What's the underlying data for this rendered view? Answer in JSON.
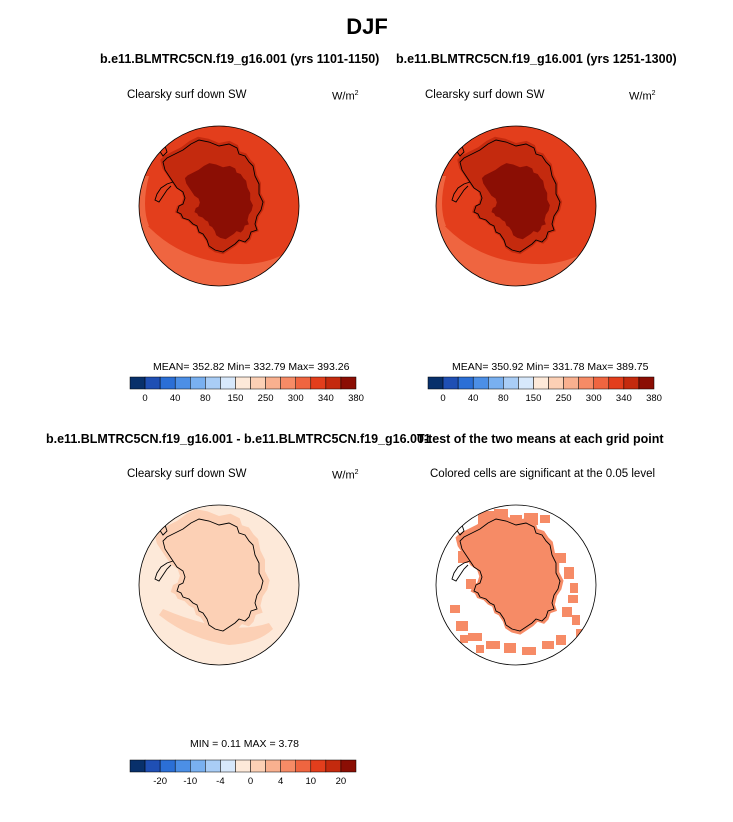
{
  "figure": {
    "title": "DJF",
    "top_left_title": "b.e11.BLMTRC5CN.f19_g16.001 (yrs 1101-1150)",
    "top_right_title": "b.e11.BLMTRC5CN.f19_g16.001 (yrs 1251-1300)",
    "bottom_left_title": "b.e11.BLMTRC5CN.f19_g16.001 - b.e11.BLMTRC5CN.f19_g16.001",
    "bottom_right_title": "T-test of the two means at each grid point"
  },
  "panels": {
    "top_left": {
      "label": "Clearsky surf down SW",
      "units": "W/m",
      "units_sup": "2",
      "stats": "MEAN= 352.82  Min= 332.79  Max= 393.26"
    },
    "top_right": {
      "label": "Clearsky surf down SW",
      "units": "W/m",
      "units_sup": "2",
      "stats": "MEAN= 350.92  Min= 331.78  Max= 389.75"
    },
    "bottom_left": {
      "label": "Clearsky surf down SW",
      "units": "W/m",
      "units_sup": "2",
      "stats": "MIN =   0.11 MAX =   3.78"
    },
    "bottom_right": {
      "label": "Colored cells are significant at the 0.05 level"
    }
  },
  "colorbars": {
    "abs": {
      "colors": [
        "#08306b",
        "#1f4fb4",
        "#2b6fd6",
        "#4c8fe6",
        "#79b0f0",
        "#a9cdf6",
        "#d7e8fb",
        "#fde9d9",
        "#fcd0b5",
        "#f9b08f",
        "#f68b66",
        "#ef6540",
        "#e33e1c",
        "#c42a0e",
        "#8b0e04"
      ],
      "tick_labels": [
        "0",
        "40",
        "80",
        "150",
        "250",
        "300",
        "340",
        "380"
      ],
      "tick_boundaries": [
        1,
        3,
        5,
        7,
        9,
        11,
        13,
        15
      ]
    },
    "diff": {
      "colors": [
        "#08306b",
        "#1f4fb4",
        "#2b6fd6",
        "#4c8fe6",
        "#79b0f0",
        "#a9cdf6",
        "#d7e8fb",
        "#fde9d9",
        "#fcd0b5",
        "#f9b08f",
        "#f68b66",
        "#ef6540",
        "#e33e1c",
        "#c42a0e",
        "#8b0e04"
      ],
      "tick_labels": [
        "-20",
        "-10",
        "-4",
        "0",
        "4",
        "10",
        "20"
      ],
      "tick_boundaries": [
        2,
        4,
        6,
        8,
        10,
        12,
        14
      ]
    }
  },
  "map_colors": {
    "ocean_high": "#e33e1c",
    "ocean_low": "#ef6540",
    "land_mid": "#c42a0e",
    "plateau": "#8b0e04",
    "diff_bg": "#fde9d9",
    "diff_land": "#fcd0b5",
    "signif": "#f68b66"
  }
}
